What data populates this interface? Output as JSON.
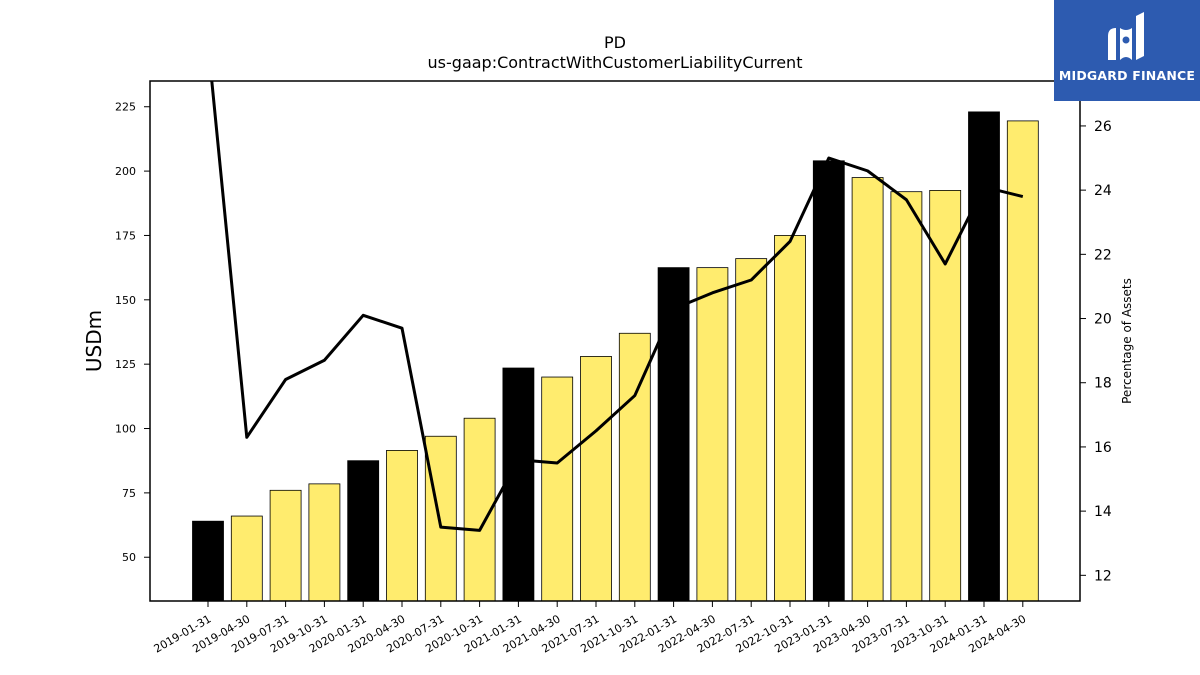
{
  "chart_data": {
    "type": "bar",
    "title": "PD",
    "subtitle": "us-gaap:ContractWithCustomerLiabilityCurrent",
    "ylabel": "USDm",
    "y2label": "Percentage of Assets",
    "ylim": [
      33,
      235
    ],
    "y2lim": [
      11.2,
      27.4
    ],
    "yticks": [
      50,
      75,
      100,
      125,
      150,
      175,
      200,
      225
    ],
    "y2ticks": [
      12,
      14,
      16,
      18,
      20,
      22,
      24,
      26
    ],
    "categories": [
      "2019-01-31",
      "2019-04-30",
      "2019-07-31",
      "2019-10-31",
      "2020-01-31",
      "2020-04-30",
      "2020-07-31",
      "2020-10-31",
      "2021-01-31",
      "2021-04-30",
      "2021-07-31",
      "2021-10-31",
      "2022-01-31",
      "2022-04-30",
      "2022-07-31",
      "2022-10-31",
      "2023-01-31",
      "2023-04-30",
      "2023-07-31",
      "2023-10-31",
      "2024-01-31",
      "2024-04-30"
    ],
    "values": [
      64,
      66,
      76,
      78.5,
      87.5,
      91.5,
      97,
      104,
      123.5,
      120,
      128,
      137,
      162.5,
      162.5,
      166,
      175,
      204,
      197.5,
      192,
      192.5,
      223,
      219.5
    ],
    "highlight": [
      true,
      false,
      false,
      false,
      true,
      false,
      false,
      false,
      true,
      false,
      false,
      false,
      true,
      false,
      false,
      false,
      true,
      false,
      false,
      false,
      true,
      false
    ],
    "colors": {
      "bar": "#ffec6e",
      "highlight": "#000000",
      "line": "#000000"
    },
    "line_series": {
      "name": "Percentage of Assets",
      "values": [
        28.6,
        16.3,
        18.1,
        18.7,
        20.1,
        19.7,
        13.5,
        13.4,
        15.6,
        15.5,
        16.5,
        17.6,
        20.3,
        20.8,
        21.2,
        22.4,
        25.0,
        24.6,
        23.7,
        21.7,
        24.1,
        23.8
      ]
    },
    "grid": false
  },
  "logo": {
    "text": "MIDGARD FINANCE"
  }
}
